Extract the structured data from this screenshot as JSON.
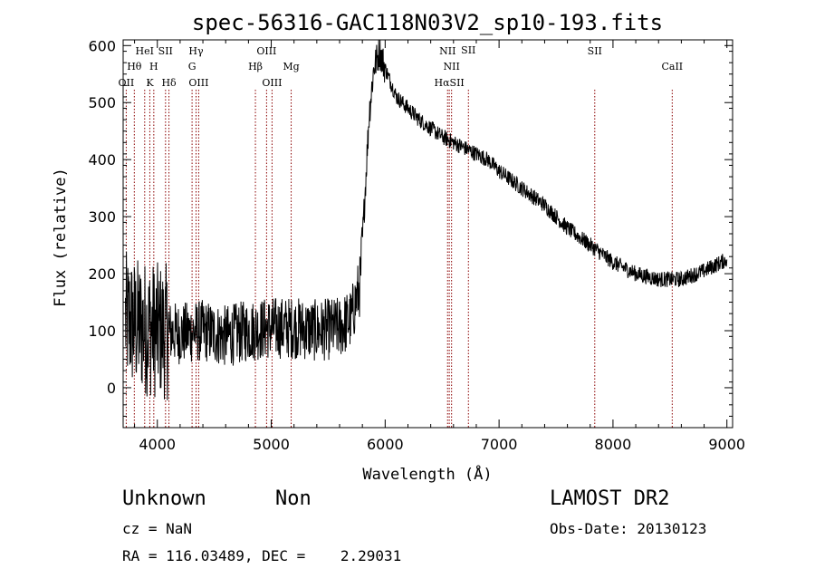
{
  "chart_data": {
    "type": "line",
    "title": "spec-56316-GAC118N03V2_sp10-193.fits",
    "xlabel": "Wavelength (Å)",
    "ylabel": "Flux (relative)",
    "xlim": [
      3700,
      9050
    ],
    "ylim": [
      -70,
      610
    ],
    "xticks": [
      4000,
      5000,
      6000,
      7000,
      8000,
      9000
    ],
    "yticks": [
      0,
      100,
      200,
      300,
      400,
      500,
      600
    ],
    "grid": false,
    "legend": "none",
    "colors": {
      "spectrum": "#000000",
      "line_marker": "#8b0000",
      "axes": "#000000"
    },
    "lines": [
      {
        "label": "OII",
        "wavelength": 3727,
        "row": 3
      },
      {
        "label": "Hθ",
        "wavelength": 3798,
        "row": 2
      },
      {
        "label": "HeI",
        "wavelength": 3889,
        "row": 1
      },
      {
        "label": "K",
        "wavelength": 3934,
        "row": 3
      },
      {
        "label": "H",
        "wavelength": 3969,
        "row": 2
      },
      {
        "label": "SII",
        "wavelength": 4072,
        "row": 1
      },
      {
        "label": "Hδ",
        "wavelength": 4102,
        "row": 3
      },
      {
        "label": "Hγ",
        "wavelength": 4340,
        "row": 1
      },
      {
        "label": "G",
        "wavelength": 4305,
        "row": 2
      },
      {
        "label": "OIII",
        "wavelength": 4363,
        "row": 3
      },
      {
        "label": "Hβ",
        "wavelength": 4861,
        "row": 2
      },
      {
        "label": "OIII",
        "wavelength": 4959,
        "row": 1
      },
      {
        "label": "OIII",
        "wavelength": 5007,
        "row": 3
      },
      {
        "label": "Mg",
        "wavelength": 5175,
        "row": 2
      },
      {
        "label": "NII",
        "wavelength": 6548,
        "row": 1
      },
      {
        "label": "NII",
        "wavelength": 6583,
        "row": 2
      },
      {
        "label": "HαSII",
        "wavelength": 6563,
        "row": 3
      },
      {
        "label": "SII",
        "wavelength": 6731,
        "row": 0
      },
      {
        "label": "SII",
        "wavelength": 7840,
        "row": 1
      },
      {
        "label": "CaII",
        "wavelength": 8520,
        "row": 2
      }
    ],
    "spectrum_anchors": {
      "x": [
        3720,
        3800,
        3900,
        4000,
        4200,
        4400,
        4600,
        4800,
        5000,
        5200,
        5400,
        5600,
        5700,
        5780,
        5820,
        5860,
        5900,
        5950,
        6000,
        6100,
        6300,
        6500,
        6700,
        6800,
        6900,
        7000,
        7200,
        7400,
        7600,
        7800,
        8000,
        8200,
        8400,
        8600,
        8800,
        9000
      ],
      "y": [
        120,
        110,
        105,
        100,
        95,
        100,
        90,
        100,
        105,
        105,
        100,
        105,
        120,
        180,
        330,
        480,
        560,
        590,
        560,
        510,
        470,
        440,
        420,
        410,
        400,
        380,
        350,
        320,
        280,
        250,
        220,
        200,
        190,
        190,
        205,
        225
      ]
    }
  },
  "info": {
    "object_class": "Unknown",
    "object_subclass": "Non",
    "survey": "LAMOST DR2",
    "cz": "cz = NaN",
    "obs_date": "Obs-Date: 20130123",
    "coords": "RA = 116.03489, DEC =    2.29031"
  }
}
